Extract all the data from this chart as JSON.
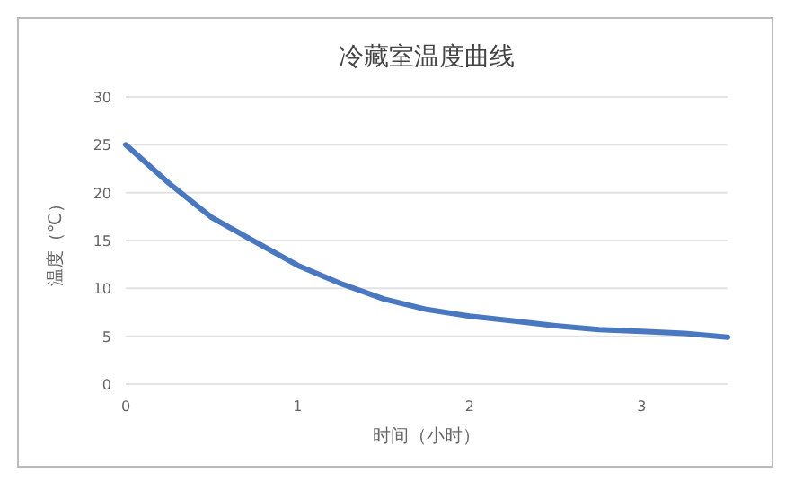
{
  "chart_data": {
    "type": "line",
    "title": "冷藏室温度曲线",
    "xlabel": "时间（小时）",
    "ylabel": "温度（℃）",
    "x": [
      0,
      0.25,
      0.5,
      0.75,
      1,
      1.25,
      1.5,
      1.75,
      2,
      2.25,
      2.5,
      2.75,
      3,
      3.25,
      3.5
    ],
    "series": [
      {
        "color": "#4a78c0",
        "values": [
          25,
          21,
          17.4,
          14.9,
          12.4,
          10.5,
          8.9,
          7.8,
          7.1,
          6.6,
          6.1,
          5.7,
          5.5,
          5.3,
          4.9
        ]
      }
    ],
    "xlim": [
      0,
      3.5
    ],
    "xticks": [
      0,
      1,
      2,
      3
    ],
    "ylim": [
      0,
      30
    ],
    "yticks": [
      0,
      5,
      10,
      15,
      20,
      25,
      30
    ],
    "grid": "y",
    "marker": "none",
    "line_style": "solid"
  }
}
